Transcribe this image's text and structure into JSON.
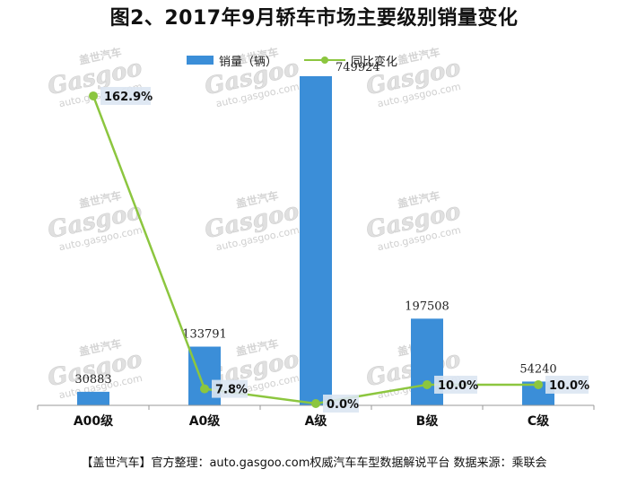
{
  "title": "图2、2017年9月轿车市场主要级别销量变化",
  "footer": "【盖世汽车】官方整理：auto.gasgoo.com权威汽车车型数据解说平台 数据来源：乘联会",
  "watermark": {
    "cn": "盖世汽车",
    "logo": "Gasgoo",
    "url": "auto.gasgoo.com"
  },
  "colors": {
    "bar": "#3b8ed8",
    "line": "#8cc63f",
    "label_box": "#dbe6f2"
  },
  "chart_data": {
    "type": "bar",
    "categories": [
      "A00级",
      "A0级",
      "A级",
      "B级",
      "C级"
    ],
    "series": [
      {
        "name": "销量（辆）",
        "type": "bar",
        "values": [
          30883,
          133791,
          749924,
          197508,
          54240
        ],
        "labels": [
          "30883",
          "133791",
          "749924",
          "197508",
          "54240"
        ]
      },
      {
        "name": "同比变化",
        "type": "line",
        "values": [
          162.9,
          7.8,
          0.0,
          10.0,
          10.0
        ],
        "labels": [
          "162.9%",
          "7.8%",
          "0.0%",
          "10.0%",
          "10.0%"
        ]
      }
    ],
    "ylim": [
      0,
      760000
    ],
    "y2lim": [
      0,
      170
    ],
    "legend": "top"
  }
}
